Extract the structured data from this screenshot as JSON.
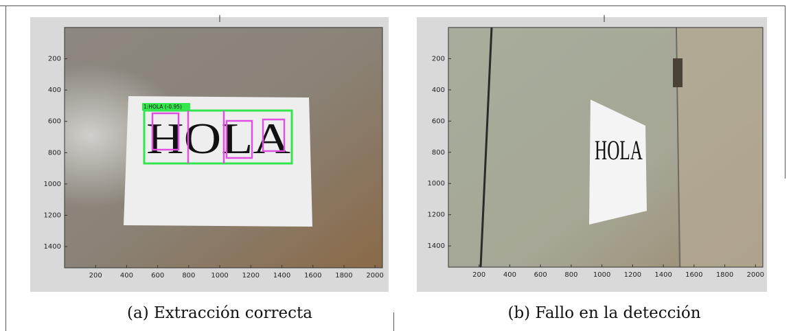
{
  "panels": [
    {
      "caption": "(a) Extracción correcta",
      "sign_text": "HOLA",
      "detection_label": "1:HOLA (-0.95)",
      "xlim": [
        0,
        2048
      ],
      "ylim": [
        0,
        1536
      ],
      "xticks": [
        200,
        400,
        600,
        800,
        1000,
        1200,
        1400,
        1600,
        1800,
        2000
      ],
      "yticks": [
        200,
        400,
        600,
        800,
        1000,
        1200,
        1400
      ]
    },
    {
      "caption": "(b) Fallo en la detección",
      "sign_text": "HOLA",
      "xlim": [
        0,
        2048
      ],
      "ylim": [
        0,
        1536
      ],
      "xticks": [
        200,
        400,
        600,
        800,
        1000,
        1200,
        1400,
        1600,
        1800,
        2000
      ],
      "yticks": [
        200,
        400,
        600,
        800,
        1000,
        1200,
        1400
      ]
    }
  ]
}
